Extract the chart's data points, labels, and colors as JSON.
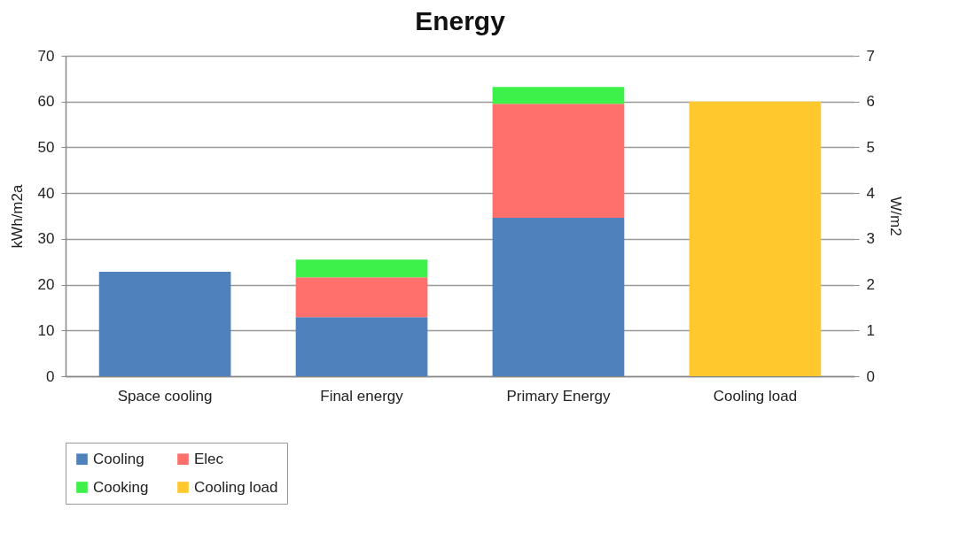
{
  "chart_data": {
    "type": "bar",
    "title": "Energy",
    "ylabel": "kWh/m2a",
    "y2label": "W/m2",
    "categories": [
      "Space cooling",
      "Final energy",
      "Primary Energy",
      "Cooling load"
    ],
    "stacked": true,
    "series": [
      {
        "name": "Cooling",
        "color": "#4f81bd",
        "values": [
          22.8,
          12.9,
          34.6,
          null
        ]
      },
      {
        "name": "Elec",
        "color": "#ff6f6b",
        "values": [
          null,
          8.7,
          24.9,
          null
        ]
      },
      {
        "name": "Cooking",
        "color": "#3df04a",
        "values": [
          null,
          3.9,
          3.7,
          null
        ]
      },
      {
        "name": "Cooling load",
        "color": "#ffc92e",
        "axis": "y2",
        "values": [
          null,
          null,
          null,
          6.0
        ]
      }
    ],
    "ylim": [
      0,
      70
    ],
    "yticks": [
      0,
      10,
      20,
      30,
      40,
      50,
      60,
      70
    ],
    "y2lim": [
      0,
      7
    ],
    "y2ticks": [
      0,
      1,
      2,
      3,
      4,
      5,
      6,
      7
    ],
    "grid": "y",
    "legend": "bottom"
  }
}
